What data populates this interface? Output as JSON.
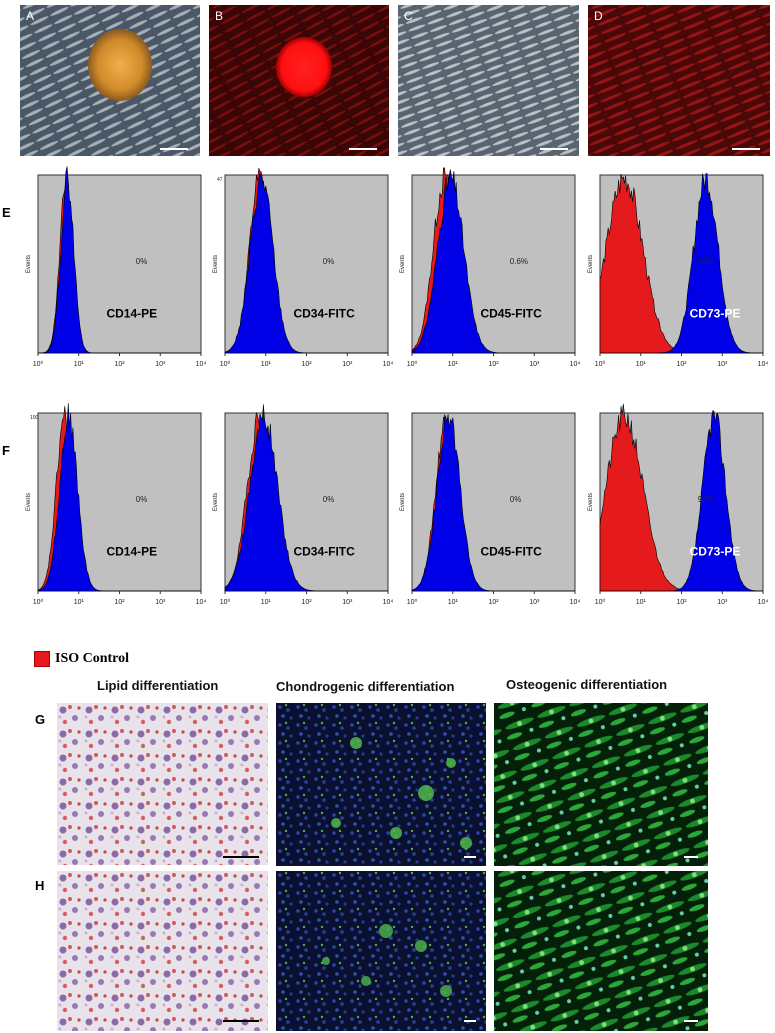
{
  "panels_top": [
    {
      "label": "A",
      "kind": "phase-colony"
    },
    {
      "label": "B",
      "kind": "red-colony"
    },
    {
      "label": "C",
      "kind": "phase-cells"
    },
    {
      "label": "D",
      "kind": "red-cells"
    }
  ],
  "rows": [
    {
      "label": "E",
      "plots": [
        {
          "marker": "CD14-PE",
          "percent": "0%",
          "ylabel": "Events",
          "ytop": "",
          "iso_peak": 0.7,
          "iso_width": 0.16,
          "pos_peak": 0.72,
          "pos_width": 0.16,
          "pos_shift": 0,
          "marker_white": false
        },
        {
          "marker": "CD34-FITC",
          "percent": "0%",
          "ylabel": "Events",
          "ytop": "47",
          "iso_peak": 0.85,
          "iso_width": 0.25,
          "pos_peak": 0.9,
          "pos_width": 0.28,
          "pos_shift": 0,
          "marker_white": false
        },
        {
          "marker": "CD45-FITC",
          "percent": "0.6%",
          "ylabel": "Events",
          "ytop": "",
          "iso_peak": 0.8,
          "iso_width": 0.28,
          "pos_peak": 0.95,
          "pos_width": 0.32,
          "pos_shift": 0,
          "marker_white": false
        },
        {
          "marker": "CD73-PE",
          "percent": "96%",
          "ylabel": "Events",
          "ytop": "",
          "iso_peak": 0.6,
          "iso_width": 0.45,
          "pos_peak": 2.6,
          "pos_width": 0.3,
          "pos_shift": 1,
          "marker_white": true
        }
      ]
    },
    {
      "label": "F",
      "plots": [
        {
          "marker": "CD14-PE",
          "percent": "0%",
          "ylabel": "Events",
          "ytop": "100",
          "iso_peak": 0.65,
          "iso_width": 0.2,
          "pos_peak": 0.75,
          "pos_width": 0.22,
          "pos_shift": 0,
          "marker_white": false
        },
        {
          "marker": "CD34-FITC",
          "percent": "0%",
          "ylabel": "Events",
          "ytop": "",
          "iso_peak": 0.85,
          "iso_width": 0.3,
          "pos_peak": 0.95,
          "pos_width": 0.34,
          "pos_shift": 0,
          "marker_white": false
        },
        {
          "marker": "CD45-FITC",
          "percent": "0%",
          "ylabel": "Events",
          "ytop": "",
          "iso_peak": 0.85,
          "iso_width": 0.26,
          "pos_peak": 0.9,
          "pos_width": 0.28,
          "pos_shift": 0,
          "marker_white": false
        },
        {
          "marker": "CD73-PE",
          "percent": "92%",
          "ylabel": "Events",
          "ytop": "",
          "iso_peak": 0.6,
          "iso_width": 0.45,
          "pos_peak": 2.8,
          "pos_width": 0.28,
          "pos_shift": 1,
          "marker_white": true
        }
      ]
    }
  ],
  "axis_ticks": [
    "10⁰",
    "10¹",
    "10²",
    "10³",
    "10⁴"
  ],
  "legend": {
    "label": "ISO Control",
    "color": "#e41a1c"
  },
  "colors": {
    "iso": "#e41a1c",
    "positive": "#0000e6",
    "plot_bg": "#c0c0c0"
  },
  "diff_titles": [
    "Lipid differentiation",
    "Chondrogenic differentiation",
    "Osteogenic differentiation"
  ],
  "diff_rows": [
    "G",
    "H"
  ]
}
